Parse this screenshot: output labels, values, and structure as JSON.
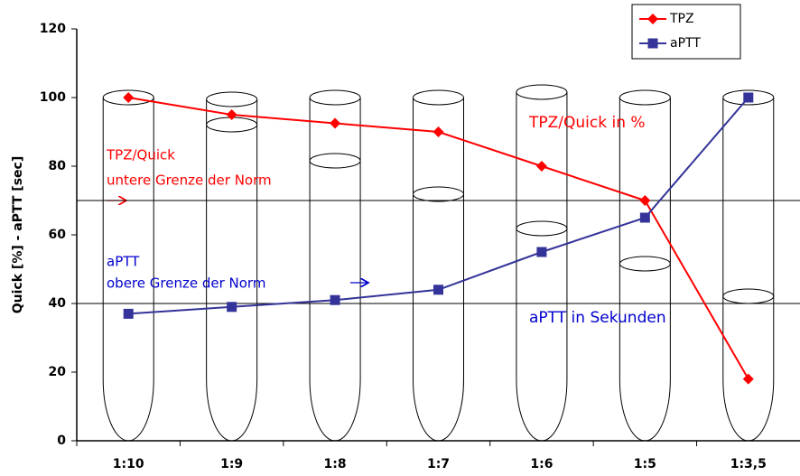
{
  "chart_data": {
    "type": "line",
    "y_label": "Quick [%] - aPTT [sec]",
    "categories": [
      "1:10",
      "1:9",
      "1:8",
      "1:7",
      "1:6",
      "1:5",
      "1:3,5"
    ],
    "series": [
      {
        "name": "TPZ",
        "color": "#ff0000",
        "marker": "diamond",
        "values": [
          100,
          95,
          92.5,
          90,
          80,
          70,
          18
        ]
      },
      {
        "name": "aPTT",
        "color": "#333399",
        "marker": "square",
        "values": [
          37,
          39,
          41,
          44,
          55,
          65,
          100
        ]
      }
    ],
    "reference_lines": [
      70,
      40
    ],
    "ylim": [
      0,
      120
    ],
    "yticks": [
      0,
      20,
      40,
      60,
      80,
      100,
      120
    ],
    "annotations": [
      {
        "text": "TPZ/Quick",
        "color": "#ff0000"
      },
      {
        "text": "untere Grenze der Norm",
        "color": "#ff0000"
      },
      {
        "text": "aPTT",
        "color": "#0000cc"
      },
      {
        "text": "obere Grenze der Norm",
        "color": "#0000cc"
      },
      {
        "text": "TPZ/Quick in %",
        "color": "#ff0000"
      },
      {
        "text": "aPTT in Sekunden",
        "color": "#0000cc"
      }
    ],
    "legend": "top-right"
  }
}
